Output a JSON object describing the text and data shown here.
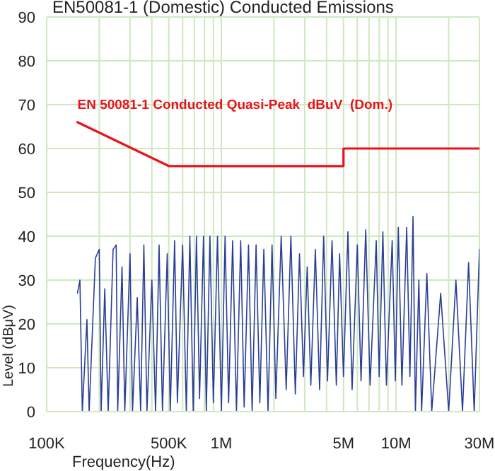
{
  "chart_data": {
    "type": "line",
    "title": "EN50081-1 (Domestic) Conducted Emissions",
    "xlabel": "Frequency(Hz)",
    "ylabel": "Level (dBμV)",
    "log": "x",
    "grid": true,
    "legend": false,
    "marker": "none",
    "line_style": "solid",
    "xlim": [
      100000,
      30000000
    ],
    "xticks": [
      {
        "value": 100000,
        "label": "100K"
      },
      {
        "value": 200000,
        "label": null
      },
      {
        "value": 300000,
        "label": null
      },
      {
        "value": 400000,
        "label": null
      },
      {
        "value": 500000,
        "label": "500K"
      },
      {
        "value": 600000,
        "label": null
      },
      {
        "value": 700000,
        "label": null
      },
      {
        "value": 800000,
        "label": null
      },
      {
        "value": 900000,
        "label": null
      },
      {
        "value": 1000000,
        "label": "1M"
      },
      {
        "value": 2000000,
        "label": null
      },
      {
        "value": 3000000,
        "label": null
      },
      {
        "value": 4000000,
        "label": null
      },
      {
        "value": 5000000,
        "label": "5M"
      },
      {
        "value": 6000000,
        "label": null
      },
      {
        "value": 7000000,
        "label": null
      },
      {
        "value": 8000000,
        "label": null
      },
      {
        "value": 9000000,
        "label": null
      },
      {
        "value": 10000000,
        "label": "10M"
      },
      {
        "value": 20000000,
        "label": null
      },
      {
        "value": 30000000,
        "label": "30M"
      }
    ],
    "ylim": [
      0,
      90
    ],
    "yticks": [
      0,
      10,
      20,
      30,
      40,
      50,
      60,
      70,
      80,
      90
    ],
    "series": [
      {
        "color": "#2b3f96",
        "x": [
          150000,
          155000,
          160000,
          170000,
          175000,
          190000,
          200000,
          205000,
          215000,
          225000,
          240000,
          250000,
          255000,
          270000,
          280000,
          300000,
          310000,
          330000,
          345000,
          360000,
          375000,
          400000,
          420000,
          440000,
          460000,
          490000,
          510000,
          540000,
          560000,
          600000,
          630000,
          660000,
          690000,
          720000,
          750000,
          790000,
          820000,
          860000,
          900000,
          950000,
          1000000,
          1050000,
          1100000,
          1160000,
          1220000,
          1290000,
          1350000,
          1430000,
          1500000,
          1580000,
          1660000,
          1750000,
          1850000,
          1950000,
          2050000,
          2200000,
          2350000,
          2500000,
          2650000,
          2800000,
          2950000,
          3100000,
          3250000,
          3450000,
          3650000,
          3850000,
          4050000,
          4300000,
          4550000,
          4750000,
          5000000,
          5300000,
          5600000,
          6000000,
          6300000,
          6700000,
          7100000,
          7700000,
          8000000,
          8400000,
          8800000,
          9500000,
          9900000,
          10300000,
          10800000,
          11500000,
          12000000,
          12500000,
          12900000,
          13500000,
          14000000,
          15000000,
          16000000,
          18000000,
          20000000,
          22000000,
          24000000,
          26000000,
          28000000,
          30000000
        ],
        "values": [
          27,
          30,
          0,
          21,
          0,
          35,
          37,
          0,
          28,
          0,
          37,
          38,
          0,
          33,
          0,
          36,
          0,
          26,
          0,
          38,
          0,
          30,
          0,
          38,
          0,
          36,
          0,
          39,
          2,
          38,
          0,
          40,
          0,
          40,
          3,
          40,
          0,
          40,
          2,
          40,
          0,
          40,
          2,
          39,
          0,
          39,
          1,
          38,
          0,
          38,
          2,
          37,
          0,
          38,
          3,
          40,
          5,
          40,
          4,
          36,
          8,
          33,
          6,
          37,
          5,
          40,
          7,
          39,
          6,
          36,
          8,
          41,
          5,
          38,
          7,
          41.5,
          6,
          39,
          8,
          41,
          6,
          39,
          7,
          42,
          6,
          42,
          8,
          44.5,
          0,
          30,
          0,
          31.5,
          0,
          27,
          0,
          30,
          0,
          34,
          0,
          37
        ]
      },
      {
        "name": "EN 50081-1 Conducted Quasi-Peak  dBuV  (Dom.)",
        "color": "#e8141b",
        "x": [
          150000,
          500000,
          5000000,
          5000000,
          30000000
        ],
        "values": [
          66,
          56,
          56,
          60,
          60
        ]
      }
    ]
  }
}
